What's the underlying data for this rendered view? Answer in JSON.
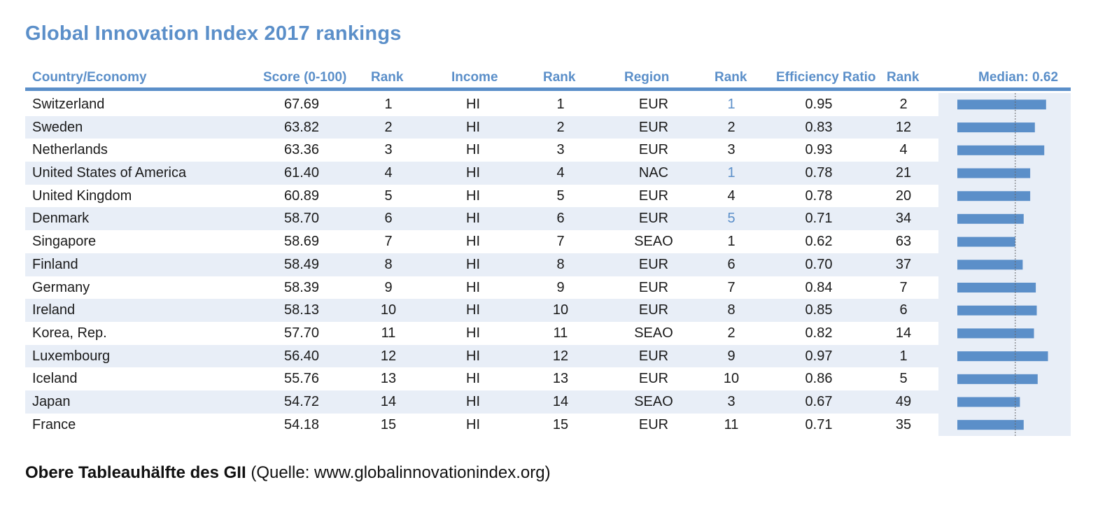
{
  "title": "Global Innovation Index 2017 rankings",
  "headers": {
    "country": "Country/Economy",
    "score": "Score (0-100)",
    "rank1": "Rank",
    "income": "Income",
    "rank2": "Rank",
    "region": "Region",
    "rank3": "Rank",
    "efficiency": "Efficiency Ratio",
    "rank4": "Rank",
    "median": "Median: 0.62"
  },
  "colors": {
    "accent": "#5b8fc9",
    "row_alt": "#e8eef7",
    "text": "#1a1a1a"
  },
  "rows": [
    {
      "country": "Switzerland",
      "score": "67.69",
      "rank": "1",
      "income": "HI",
      "income_rank": "1",
      "region": "EUR",
      "region_rank": "1",
      "region_rank_highlight": true,
      "efficiency": "0.95",
      "eff_rank": "2"
    },
    {
      "country": "Sweden",
      "score": "63.82",
      "rank": "2",
      "income": "HI",
      "income_rank": "2",
      "region": "EUR",
      "region_rank": "2",
      "region_rank_highlight": false,
      "efficiency": "0.83",
      "eff_rank": "12"
    },
    {
      "country": "Netherlands",
      "score": "63.36",
      "rank": "3",
      "income": "HI",
      "income_rank": "3",
      "region": "EUR",
      "region_rank": "3",
      "region_rank_highlight": false,
      "efficiency": "0.93",
      "eff_rank": "4"
    },
    {
      "country": "United States of America",
      "score": "61.40",
      "rank": "4",
      "income": "HI",
      "income_rank": "4",
      "region": "NAC",
      "region_rank": "1",
      "region_rank_highlight": true,
      "efficiency": "0.78",
      "eff_rank": "21"
    },
    {
      "country": "United Kingdom",
      "score": "60.89",
      "rank": "5",
      "income": "HI",
      "income_rank": "5",
      "region": "EUR",
      "region_rank": "4",
      "region_rank_highlight": false,
      "efficiency": "0.78",
      "eff_rank": "20"
    },
    {
      "country": "Denmark",
      "score": "58.70",
      "rank": "6",
      "income": "HI",
      "income_rank": "6",
      "region": "EUR",
      "region_rank": "5",
      "region_rank_highlight": true,
      "efficiency": "0.71",
      "eff_rank": "34"
    },
    {
      "country": "Singapore",
      "score": "58.69",
      "rank": "7",
      "income": "HI",
      "income_rank": "7",
      "region": "SEAO",
      "region_rank": "1",
      "region_rank_highlight": false,
      "efficiency": "0.62",
      "eff_rank": "63"
    },
    {
      "country": "Finland",
      "score": "58.49",
      "rank": "8",
      "income": "HI",
      "income_rank": "8",
      "region": "EUR",
      "region_rank": "6",
      "region_rank_highlight": false,
      "efficiency": "0.70",
      "eff_rank": "37"
    },
    {
      "country": "Germany",
      "score": "58.39",
      "rank": "9",
      "income": "HI",
      "income_rank": "9",
      "region": "EUR",
      "region_rank": "7",
      "region_rank_highlight": false,
      "efficiency": "0.84",
      "eff_rank": "7"
    },
    {
      "country": "Ireland",
      "score": "58.13",
      "rank": "10",
      "income": "HI",
      "income_rank": "10",
      "region": "EUR",
      "region_rank": "8",
      "region_rank_highlight": false,
      "efficiency": "0.85",
      "eff_rank": "6"
    },
    {
      "country": "Korea, Rep.",
      "score": "57.70",
      "rank": "11",
      "income": "HI",
      "income_rank": "11",
      "region": "SEAO",
      "region_rank": "2",
      "region_rank_highlight": false,
      "efficiency": "0.82",
      "eff_rank": "14"
    },
    {
      "country": "Luxembourg",
      "score": "56.40",
      "rank": "12",
      "income": "HI",
      "income_rank": "12",
      "region": "EUR",
      "region_rank": "9",
      "region_rank_highlight": false,
      "efficiency": "0.97",
      "eff_rank": "1"
    },
    {
      "country": "Iceland",
      "score": "55.76",
      "rank": "13",
      "income": "HI",
      "income_rank": "13",
      "region": "EUR",
      "region_rank": "10",
      "region_rank_highlight": false,
      "efficiency": "0.86",
      "eff_rank": "5"
    },
    {
      "country": "Japan",
      "score": "54.72",
      "rank": "14",
      "income": "HI",
      "income_rank": "14",
      "region": "SEAO",
      "region_rank": "3",
      "region_rank_highlight": false,
      "efficiency": "0.67",
      "eff_rank": "49"
    },
    {
      "country": "France",
      "score": "54.18",
      "rank": "15",
      "income": "HI",
      "income_rank": "15",
      "region": "EUR",
      "region_rank": "11",
      "region_rank_highlight": false,
      "efficiency": "0.71",
      "eff_rank": "35"
    }
  ],
  "chart_data": {
    "type": "table",
    "title": "Global Innovation Index 2017 rankings",
    "bar_series": {
      "type": "bar",
      "orientation": "horizontal",
      "categories": [
        "Switzerland",
        "Sweden",
        "Netherlands",
        "United States of America",
        "United Kingdom",
        "Denmark",
        "Singapore",
        "Finland",
        "Germany",
        "Ireland",
        "Korea, Rep.",
        "Luxembourg",
        "Iceland",
        "Japan",
        "France"
      ],
      "values": [
        0.95,
        0.83,
        0.93,
        0.78,
        0.78,
        0.71,
        0.62,
        0.7,
        0.84,
        0.85,
        0.82,
        0.97,
        0.86,
        0.67,
        0.71
      ],
      "reference_line": 0.62,
      "reference_label": "Median: 0.62",
      "xlim": [
        0,
        1
      ]
    }
  },
  "caption": {
    "bold": "Obere Tableauhälfte des GII",
    "normal": " (Quelle: www.globalinnovationindex.org)"
  }
}
